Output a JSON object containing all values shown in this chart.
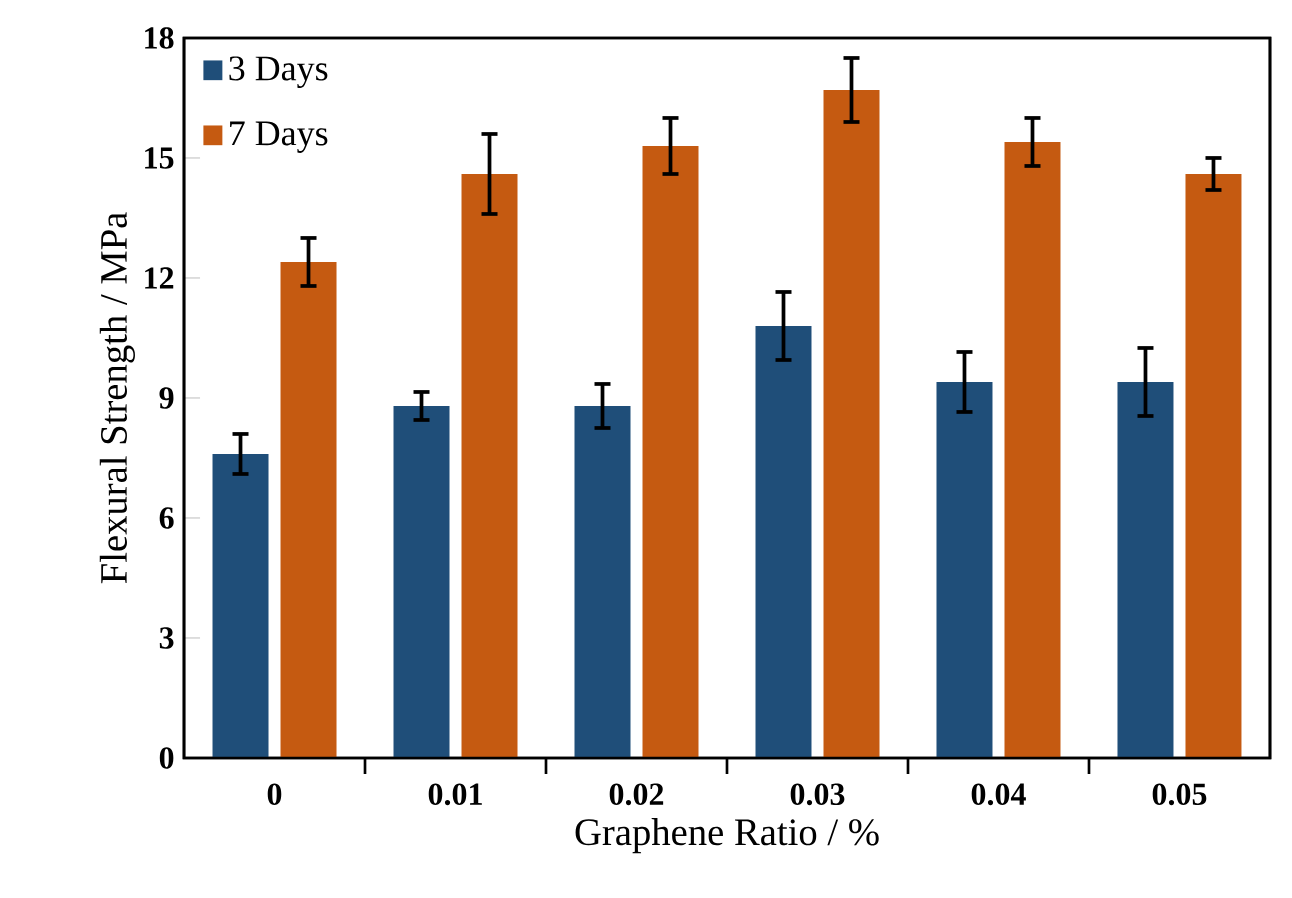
{
  "chart_data": {
    "type": "bar",
    "xlabel": "Graphene Ratio / %",
    "ylabel": "Flexural Strength / MPa",
    "categories": [
      "0",
      "0.01",
      "0.02",
      "0.03",
      "0.04",
      "0.05"
    ],
    "series": [
      {
        "name": "3 Days",
        "color": "#1f4e79",
        "values": [
          7.6,
          8.8,
          8.8,
          10.8,
          9.4,
          9.4
        ],
        "errors": [
          0.5,
          0.35,
          0.55,
          0.85,
          0.75,
          0.85
        ]
      },
      {
        "name": "7 Days",
        "color": "#c55a11",
        "values": [
          12.4,
          14.6,
          15.3,
          16.7,
          15.4,
          14.6
        ],
        "errors": [
          0.6,
          1.0,
          0.7,
          0.8,
          0.6,
          0.4
        ]
      }
    ],
    "ylim": [
      0,
      18
    ],
    "yticks": [
      0,
      3,
      6,
      9,
      12,
      15,
      18
    ],
    "grid": false,
    "legend": "top left"
  }
}
